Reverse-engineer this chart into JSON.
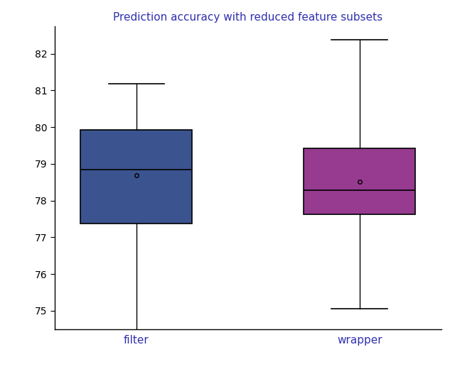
{
  "title": "Prediction accuracy with reduced feature subsets",
  "title_color": "#3030b0",
  "categories": [
    "filter",
    "wrapper"
  ],
  "box_data": {
    "filter": {
      "whislo": 74.18,
      "q1": 77.38,
      "med": 78.85,
      "q3": 79.92,
      "whishi": 81.18,
      "mean": 78.68,
      "fliers": []
    },
    "wrapper": {
      "whislo": 75.05,
      "q1": 77.62,
      "med": 78.28,
      "q3": 79.42,
      "whishi": 82.38,
      "mean": 78.52,
      "fliers": []
    }
  },
  "box_colors": [
    "#3b5490",
    "#963b90"
  ],
  "mean_marker": "o",
  "mean_marker_size": 4,
  "mean_marker_color": "black",
  "mean_marker_facecolor": "none",
  "ylim": [
    74.5,
    82.75
  ],
  "yticks": [
    75,
    76,
    77,
    78,
    79,
    80,
    81,
    82
  ],
  "xlabel_color": "#3030b0",
  "background_color": "#ffffff",
  "figsize": [
    6.4,
    5.27
  ],
  "dpi": 100,
  "box_width": 0.75,
  "positions": [
    1,
    2.5
  ]
}
